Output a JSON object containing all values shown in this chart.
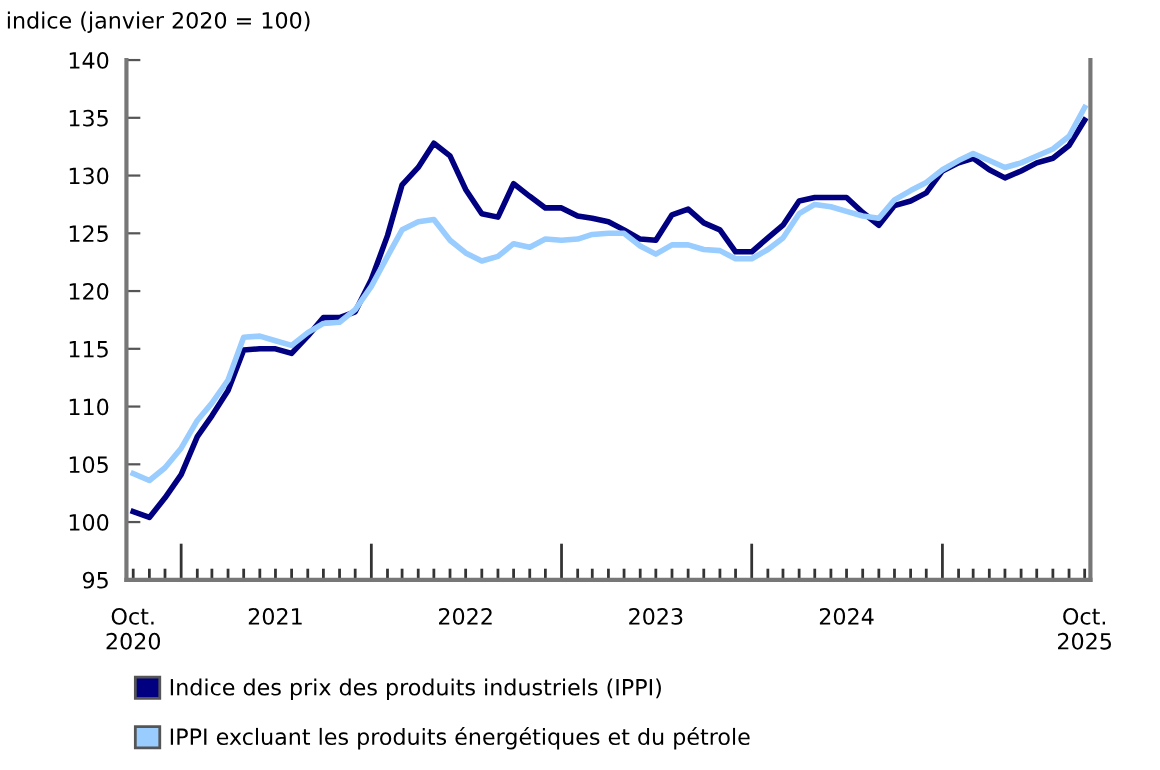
{
  "chart_data": {
    "type": "line",
    "ylabel": "indice (janvier 2020 = 100)",
    "x": [
      "2020-10",
      "2020-11",
      "2020-12",
      "2021-01",
      "2021-02",
      "2021-03",
      "2021-04",
      "2021-05",
      "2021-06",
      "2021-07",
      "2021-08",
      "2021-09",
      "2021-10",
      "2021-11",
      "2021-12",
      "2022-01",
      "2022-02",
      "2022-03",
      "2022-04",
      "2022-05",
      "2022-06",
      "2022-07",
      "2022-08",
      "2022-09",
      "2022-10",
      "2022-11",
      "2022-12",
      "2023-01",
      "2023-02",
      "2023-03",
      "2023-04",
      "2023-05",
      "2023-06",
      "2023-07",
      "2023-08",
      "2023-09",
      "2023-10",
      "2023-11",
      "2023-12",
      "2024-01",
      "2024-02",
      "2024-03",
      "2024-04",
      "2024-05",
      "2024-06",
      "2024-07",
      "2024-08",
      "2024-09",
      "2024-10",
      "2024-11",
      "2024-12",
      "2025-01",
      "2025-02",
      "2025-03",
      "2025-04",
      "2025-05",
      "2025-06",
      "2025-07",
      "2025-08",
      "2025-09",
      "2025-10"
    ],
    "series": [
      {
        "name": "Indice des prix des produits industriels (IPPI)",
        "color": "#000080",
        "values": [
          100.9,
          100.4,
          102.1,
          104.1,
          107.4,
          109.2,
          111.4,
          114.9,
          115.0,
          115.0,
          114.6,
          116.1,
          117.7,
          117.7,
          118.2,
          121.0,
          124.8,
          129.2,
          130.7,
          132.8,
          131.7,
          128.8,
          126.7,
          126.4,
          129.3,
          128.2,
          127.2,
          127.2,
          126.5,
          126.3,
          126.0,
          125.3,
          124.5,
          124.4,
          126.6,
          127.1,
          125.9,
          125.3,
          123.4,
          123.4,
          124.6,
          125.7,
          127.8,
          128.1,
          128.1,
          128.1,
          126.8,
          125.7,
          127.4,
          127.8,
          128.5,
          130.4,
          131.1,
          131.5,
          130.5,
          129.8,
          130.4,
          131.1,
          131.5,
          132.6,
          134.8
        ]
      },
      {
        "name": "IPPI excluant les produits énergétiques et du pétrole",
        "color": "#99ccff",
        "values": [
          104.2,
          103.6,
          104.7,
          106.4,
          108.8,
          110.3,
          112.3,
          116.0,
          116.1,
          115.7,
          115.3,
          116.4,
          117.2,
          117.3,
          118.4,
          120.4,
          123.0,
          125.3,
          126.0,
          126.2,
          124.4,
          123.3,
          122.6,
          123.0,
          124.1,
          123.8,
          124.5,
          124.4,
          124.5,
          124.9,
          125.0,
          125.0,
          123.9,
          123.2,
          124.0,
          124.0,
          123.6,
          123.5,
          122.8,
          122.8,
          123.6,
          124.6,
          126.7,
          127.5,
          127.3,
          126.9,
          126.5,
          126.3,
          127.9,
          128.7,
          129.4,
          130.5,
          131.3,
          131.9,
          131.3,
          130.7,
          131.1,
          131.7,
          132.3,
          133.4,
          135.9
        ]
      }
    ],
    "xlim": [
      "2020-09-18",
      "2025-10-12"
    ],
    "xticks": [
      {
        "value": "2020-10",
        "label": "Oct.\n2020"
      },
      {
        "value": "2021-07",
        "label": "2021"
      },
      {
        "value": "2022-07",
        "label": "2022"
      },
      {
        "value": "2023-07",
        "label": "2023"
      },
      {
        "value": "2024-07",
        "label": "2024"
      },
      {
        "value": "2025-10",
        "label": "Oct.\n2025"
      }
    ],
    "ylim": [
      95,
      140
    ],
    "yticks": [
      95,
      100,
      105,
      110,
      115,
      120,
      125,
      130,
      135,
      140
    ],
    "grid": false,
    "legend": "bottom",
    "marker": "none",
    "line_style": "solid"
  }
}
